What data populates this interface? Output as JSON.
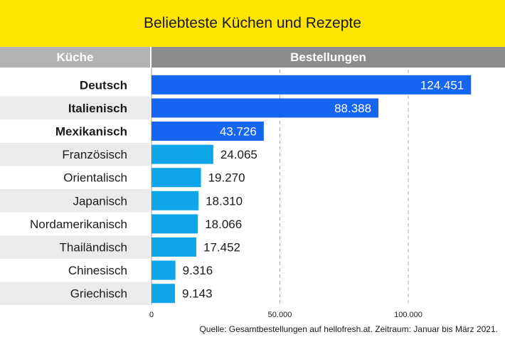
{
  "title": "Beliebteste Küchen und Rezepte",
  "header": {
    "left": "Küche",
    "right": "Bestellungen"
  },
  "source": "Quelle: Gesamtbestellungen auf hellofresh.at. Zeitraum: Januar bis März 2021.",
  "colors": {
    "title_bg": "#ffe500",
    "bar_top": "#1466f2",
    "bar_other": "#0ea5e9",
    "row_stripe": "#ebebeb"
  },
  "chart_data": {
    "type": "bar",
    "orientation": "horizontal",
    "categories": [
      "Deutsch",
      "Italienisch",
      "Mexikanisch",
      "Französisch",
      "Orientalisch",
      "Japanisch",
      "Nordamerikanisch",
      "Thailändisch",
      "Chinesisch",
      "Griechisch"
    ],
    "values": [
      124451,
      88388,
      43726,
      24065,
      19270,
      18310,
      18066,
      17452,
      9316,
      9143
    ],
    "value_labels": [
      "124.451",
      "88.388",
      "43.726",
      "24.065",
      "19.270",
      "18.310",
      "18.066",
      "17.452",
      "9.316",
      "9.143"
    ],
    "highlight_top": 3,
    "xlim": [
      0,
      130000
    ],
    "ticks": [
      0,
      50000,
      100000
    ],
    "tick_labels": [
      "0",
      "50.000",
      "100.000"
    ],
    "grid": true
  }
}
